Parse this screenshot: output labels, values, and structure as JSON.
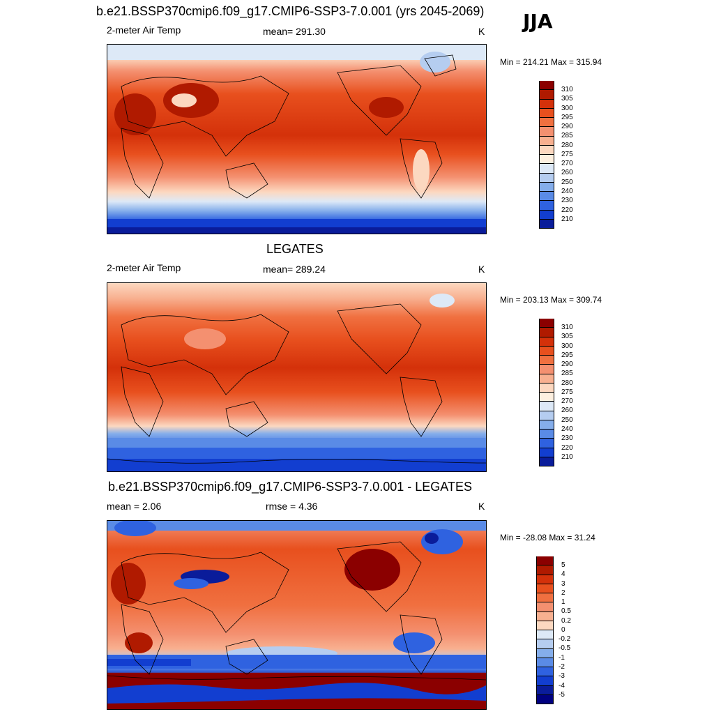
{
  "header": {
    "title": "b.e21.BSSP370cmip6.f09_g17.CMIP6-SSP3-7.0.001 (yrs 2045-2069)",
    "season": "JJA"
  },
  "panels": [
    {
      "title": "",
      "left_label": "2-meter Air Temp",
      "center_label": "mean= 291.30",
      "units": "K",
      "minmax": "Min = 214.21 Max = 315.94"
    },
    {
      "title": "LEGATES",
      "left_label": "2-meter Air Temp",
      "center_label": "mean= 289.24",
      "units": "K",
      "minmax": "Min = 203.13 Max = 309.74"
    },
    {
      "title": "b.e21.BSSP370cmip6.f09_g17.CMIP6-SSP3-7.0.001 - LEGATES",
      "left_label": "mean =   2.06",
      "center_label": "rmse =   4.36",
      "units": "K",
      "minmax": "Min = -28.08 Max =  31.24"
    }
  ],
  "colorbars": {
    "abs": {
      "labels": [
        "310",
        "305",
        "300",
        "295",
        "290",
        "285",
        "280",
        "275",
        "270",
        "260",
        "250",
        "240",
        "230",
        "220",
        "210"
      ],
      "colors": [
        "#8b0000",
        "#b01a00",
        "#d4310a",
        "#e8501e",
        "#f07040",
        "#f49070",
        "#f8b090",
        "#fcd8c0",
        "#fdf0e0",
        "#dde9f7",
        "#b5cdf0",
        "#85aeeb",
        "#5a8be6",
        "#2f62e0",
        "#123ed0",
        "#0a1c9a"
      ]
    },
    "diff": {
      "labels": [
        "5",
        "4",
        "3",
        "2",
        "1",
        "0.5",
        "0.2",
        "0",
        "-0.2",
        "-0.5",
        "-1",
        "-2",
        "-3",
        "-4",
        "-5"
      ],
      "colors": [
        "#8b0000",
        "#b01a00",
        "#d4310a",
        "#e8501e",
        "#f07040",
        "#f49070",
        "#f8b090",
        "#fcd8c0",
        "#dde9f7",
        "#b5cdf0",
        "#85aeeb",
        "#5a8be6",
        "#2f62e0",
        "#123ed0",
        "#0a1c9a",
        "#000080"
      ]
    }
  }
}
